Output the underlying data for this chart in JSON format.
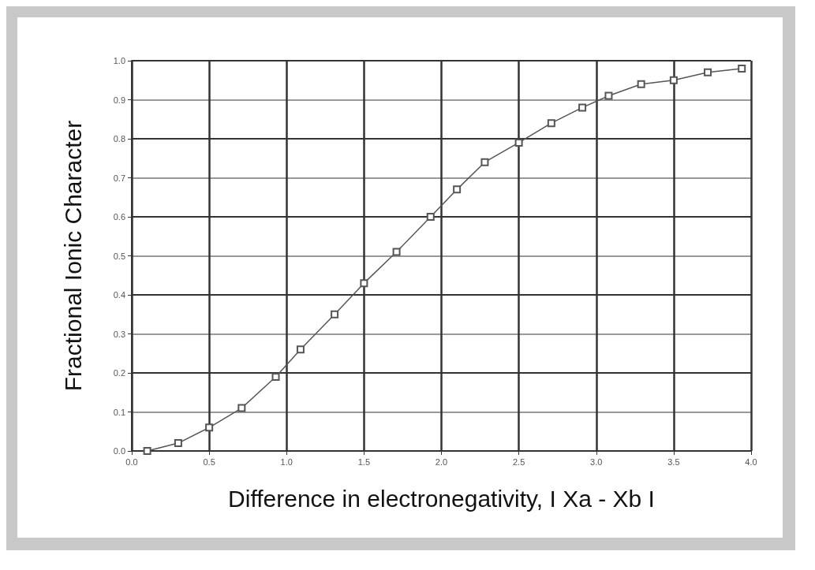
{
  "chart_data": {
    "type": "line",
    "xlabel": "Difference in electronegativity, I Xa - Xb I",
    "ylabel": "Fractional Ionic Character",
    "x": [
      0.1,
      0.3,
      0.5,
      0.71,
      0.93,
      1.09,
      1.31,
      1.5,
      1.71,
      1.93,
      2.1,
      2.28,
      2.5,
      2.71,
      2.91,
      3.08,
      3.29,
      3.5,
      3.72,
      3.94
    ],
    "values": [
      0.0,
      0.02,
      0.06,
      0.11,
      0.19,
      0.26,
      0.35,
      0.43,
      0.51,
      0.6,
      0.67,
      0.74,
      0.79,
      0.84,
      0.88,
      0.91,
      0.94,
      0.95,
      0.97,
      0.98
    ],
    "color": "#555555",
    "marker": "square",
    "line_style": "solid",
    "grid": true,
    "xlim": [
      0,
      4
    ],
    "xticks": [
      {
        "value": 0,
        "label": "0.0"
      },
      0.5,
      {
        "value": 1,
        "label": "1.0"
      },
      1.5,
      {
        "value": 2,
        "label": "2.0"
      },
      2.5,
      {
        "value": 3,
        "label": "3.0"
      },
      3.5,
      {
        "value": 4,
        "label": "4.0"
      }
    ],
    "ylim": [
      0,
      1
    ],
    "yticks": [
      {
        "value": 0,
        "label": "0.0"
      },
      0.1,
      0.2,
      0.3,
      0.4,
      0.5,
      0.6,
      0.7,
      0.8,
      0.9,
      {
        "value": 1,
        "label": "1.0"
      }
    ]
  }
}
